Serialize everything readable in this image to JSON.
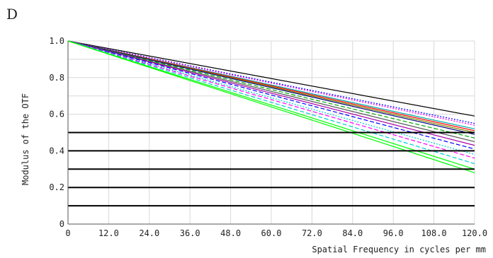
{
  "panel_label": "D",
  "chart_data": {
    "type": "line",
    "title": "",
    "ylabel": "Modulus of the OTF",
    "xlabel": "Spatial Frequency in cycles per mm",
    "xlim": [
      0,
      120
    ],
    "ylim": [
      0,
      1.0
    ],
    "x_ticks": [
      "0",
      "12.0",
      "24.0",
      "36.0",
      "48.0",
      "60.0",
      "72.0",
      "84.0",
      "96.0",
      "108.0",
      "120.0"
    ],
    "y_ticks": [
      "0",
      "0.2",
      "0.4",
      "0.6",
      "0.8",
      "1.0"
    ],
    "grid": true,
    "legend": "none",
    "x": [
      0,
      120
    ],
    "series": [
      {
        "values": [
          1.0,
          0.59
        ],
        "color": "#000000",
        "style": "solid"
      },
      {
        "values": [
          1.0,
          0.55
        ],
        "color": "#0000ff",
        "style": "dotted"
      },
      {
        "values": [
          1.0,
          0.54
        ],
        "color": "#ff00ff",
        "style": "dotted"
      },
      {
        "values": [
          1.0,
          0.52
        ],
        "color": "#00aaaa",
        "style": "solid"
      },
      {
        "values": [
          1.0,
          0.51
        ],
        "color": "#ff0000",
        "style": "solid"
      },
      {
        "values": [
          1.0,
          0.5
        ],
        "color": "#808000",
        "style": "solid"
      },
      {
        "values": [
          1.0,
          0.49
        ],
        "color": "#000080",
        "style": "solid"
      },
      {
        "values": [
          1.0,
          0.47
        ],
        "color": "#00aa00",
        "style": "dashed"
      },
      {
        "values": [
          1.0,
          0.45
        ],
        "color": "#555555",
        "style": "solid"
      },
      {
        "values": [
          1.0,
          0.43
        ],
        "color": "#aa00aa",
        "style": "solid"
      },
      {
        "values": [
          1.0,
          0.41
        ],
        "color": "#0000ff",
        "style": "dashed"
      },
      {
        "values": [
          1.0,
          0.38
        ],
        "color": "#00cccc",
        "style": "dotted"
      },
      {
        "values": [
          1.0,
          0.36
        ],
        "color": "#ff00ff",
        "style": "dashed"
      },
      {
        "values": [
          1.0,
          0.33
        ],
        "color": "#00cccc",
        "style": "dashed"
      },
      {
        "values": [
          1.0,
          0.3
        ],
        "color": "#00ff00",
        "style": "solid"
      },
      {
        "values": [
          1.0,
          0.28
        ],
        "color": "#00ff00",
        "style": "solid"
      }
    ],
    "horizontal_lines": [
      0.5,
      0.4,
      0.3,
      0.2,
      0.1
    ]
  },
  "colors": {
    "grid": "#d8d8d8",
    "axis": "#555555",
    "horizontal_lines": "#000000"
  }
}
